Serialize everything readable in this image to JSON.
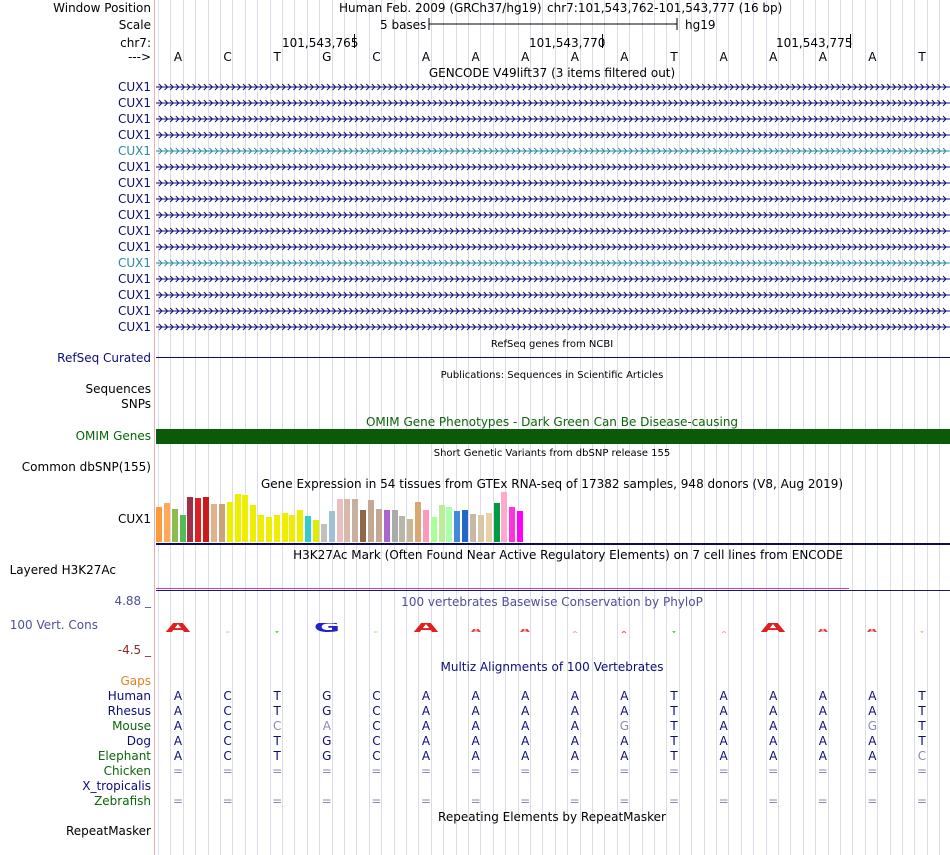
{
  "labels": {
    "window_position": "Window Position",
    "scale": "Scale",
    "chrom": "chr7:",
    "arrow": "--->",
    "refseq": "RefSeq Curated",
    "sequences": "Sequences",
    "snps": "SNPs",
    "omim": "OMIM Genes",
    "common_dbsnp": "Common dbSNP(155)",
    "gtex_gene": "CUX1",
    "h3k27ac": "Layered H3K27Ac",
    "cons_max": "4.88 _",
    "cons_label": "100 Vert. Cons",
    "cons_min": "-4.5 _",
    "gaps": "Gaps",
    "repeatmasker": "RepeatMasker"
  },
  "header": {
    "assembly": "Human Feb. 2009 (GRCh37/hg19)",
    "position": "chr7:101,543,762-101,543,777 (16 bp)",
    "scale_text": "5 bases",
    "scale_db": "hg19",
    "coord1": "101,543,765",
    "coord2": "101,543,770",
    "coord3": "101,543,775"
  },
  "bases": [
    "A",
    "C",
    "T",
    "G",
    "C",
    "A",
    "A",
    "A",
    "A",
    "A",
    "T",
    "A",
    "A",
    "A",
    "A",
    "T"
  ],
  "gencode": {
    "title": "GENCODE V49lift37 (3 items filtered out)",
    "rows": [
      {
        "name": "CUX1",
        "color": "navy"
      },
      {
        "name": "CUX1",
        "color": "navy"
      },
      {
        "name": "CUX1",
        "color": "navy"
      },
      {
        "name": "CUX1",
        "color": "navy"
      },
      {
        "name": "CUX1",
        "color": "teal"
      },
      {
        "name": "CUX1",
        "color": "navy"
      },
      {
        "name": "CUX1",
        "color": "navy"
      },
      {
        "name": "CUX1",
        "color": "navy"
      },
      {
        "name": "CUX1",
        "color": "navy"
      },
      {
        "name": "CUX1",
        "color": "navy"
      },
      {
        "name": "CUX1",
        "color": "navy"
      },
      {
        "name": "CUX1",
        "color": "teal"
      },
      {
        "name": "CUX1",
        "color": "navy"
      },
      {
        "name": "CUX1",
        "color": "navy"
      },
      {
        "name": "CUX1",
        "color": "navy"
      },
      {
        "name": "CUX1",
        "color": "navy"
      }
    ]
  },
  "tracks": {
    "refseq_title": "RefSeq genes from NCBI",
    "publications_title": "Publications: Sequences in Scientific Articles",
    "omim_title": "OMIM Gene Phenotypes - Dark Green Can Be Disease-causing",
    "dbsnp_title": "Short Genetic Variants from dbSNP release 155",
    "gtex_title": "Gene Expression in 54 tissues from GTEx RNA-seq of 17382 samples, 948 donors (V8, Aug 2019)",
    "h3k27ac_title": "H3K27Ac Mark (Often Found Near Active Regulatory Elements) on 7 cell lines from ENCODE",
    "phylop_title": "100 vertebrates Basewise Conservation by PhyloP",
    "multiz_title": "Multiz Alignments of 100 Vertebrates",
    "repeat_title": "Repeating Elements by RepeatMasker"
  },
  "colors": {
    "navy": "#0c0c78",
    "teal": "#2a8aa8",
    "omim_bar": "#0a5a0a",
    "species_green": "#0c640c",
    "gaps_orange": "#e08020",
    "phylop_purple": "#4e4e9c"
  },
  "gtex_bars": [
    {
      "h": 35,
      "c": "#ff9a3c"
    },
    {
      "h": 39,
      "c": "#ffa85a"
    },
    {
      "h": 33,
      "c": "#8fbc4f"
    },
    {
      "h": 27,
      "c": "#55bb55"
    },
    {
      "h": 45,
      "c": "#a0304a"
    },
    {
      "h": 44,
      "c": "#e02020"
    },
    {
      "h": 45,
      "c": "#cc1a1a"
    },
    {
      "h": 38,
      "c": "#dfb28c"
    },
    {
      "h": 38,
      "c": "#c9a27a"
    },
    {
      "h": 40,
      "c": "#eeee00"
    },
    {
      "h": 48,
      "c": "#eeee00"
    },
    {
      "h": 47,
      "c": "#eeee00"
    },
    {
      "h": 37,
      "c": "#eeee00"
    },
    {
      "h": 27,
      "c": "#eeee00"
    },
    {
      "h": 25,
      "c": "#eeee00"
    },
    {
      "h": 27,
      "c": "#eeee00"
    },
    {
      "h": 29,
      "c": "#eeee00"
    },
    {
      "h": 27,
      "c": "#eeee00"
    },
    {
      "h": 32,
      "c": "#eeee00"
    },
    {
      "h": 26,
      "c": "#33cccc"
    },
    {
      "h": 22,
      "c": "#ddee00"
    },
    {
      "h": 18,
      "c": "#c0c0c0"
    },
    {
      "h": 31,
      "c": "#a0c0d8"
    },
    {
      "h": 43,
      "c": "#e8c0c0"
    },
    {
      "h": 43,
      "c": "#d8b8a8"
    },
    {
      "h": 43,
      "c": "#c8b0a0"
    },
    {
      "h": 32,
      "c": "#8a6a4a"
    },
    {
      "h": 42,
      "c": "#c4a892"
    },
    {
      "h": 33,
      "c": "#c4a892"
    },
    {
      "h": 32,
      "c": "#aa66cc"
    },
    {
      "h": 32,
      "c": "#aaaaaa"
    },
    {
      "h": 26,
      "c": "#b8b8a8"
    },
    {
      "h": 23,
      "c": "#c8b898"
    },
    {
      "h": 40,
      "c": "#d8a870"
    },
    {
      "h": 32,
      "c": "#ff99bb"
    },
    {
      "h": 25,
      "c": "#aaff99"
    },
    {
      "h": 37,
      "c": "#bbee99"
    },
    {
      "h": 35,
      "c": "#aaffaa"
    },
    {
      "h": 31,
      "c": "#4488dd"
    },
    {
      "h": 32,
      "c": "#2266cc"
    },
    {
      "h": 28,
      "c": "#c8b8a8"
    },
    {
      "h": 27,
      "c": "#d8c8a8"
    },
    {
      "h": 29,
      "c": "#e8d0a8"
    },
    {
      "h": 39,
      "c": "#009944"
    },
    {
      "h": 50,
      "c": "#ffaacc"
    },
    {
      "h": 35,
      "c": "#ff33dd"
    },
    {
      "h": 31,
      "c": "#ff00ff"
    }
  ],
  "multiz": {
    "species": [
      {
        "name": "Human",
        "color": "navy",
        "bases": [
          "A",
          "C",
          "T",
          "G",
          "C",
          "A",
          "A",
          "A",
          "A",
          "A",
          "T",
          "A",
          "A",
          "A",
          "A",
          "T"
        ],
        "dim": []
      },
      {
        "name": "Rhesus",
        "color": "navy",
        "bases": [
          "A",
          "C",
          "T",
          "G",
          "C",
          "A",
          "A",
          "A",
          "A",
          "A",
          "T",
          "A",
          "A",
          "A",
          "A",
          "T"
        ],
        "dim": []
      },
      {
        "name": "Mouse",
        "color": "green",
        "bases": [
          "A",
          "C",
          "C",
          "A",
          "C",
          "A",
          "A",
          "A",
          "A",
          "G",
          "T",
          "A",
          "A",
          "A",
          "G",
          "T"
        ],
        "dim": [
          2,
          3,
          9,
          14
        ]
      },
      {
        "name": "Dog",
        "color": "navy",
        "bases": [
          "A",
          "C",
          "T",
          "G",
          "C",
          "A",
          "A",
          "A",
          "A",
          "A",
          "T",
          "A",
          "A",
          "A",
          "A",
          "T"
        ],
        "dim": []
      },
      {
        "name": "Elephant",
        "color": "green",
        "bases": [
          "A",
          "C",
          "T",
          "G",
          "C",
          "A",
          "A",
          "A",
          "A",
          "A",
          "T",
          "A",
          "A",
          "A",
          "A",
          "C"
        ],
        "dim": [
          15
        ]
      },
      {
        "name": "Chicken",
        "color": "green",
        "bases": [
          "=",
          "=",
          "=",
          "=",
          "=",
          "=",
          "=",
          "=",
          "=",
          "=",
          "=",
          "=",
          "=",
          "=",
          "=",
          "="
        ],
        "dim": [
          0,
          1,
          2,
          3,
          4,
          5,
          6,
          7,
          8,
          9,
          10,
          11,
          12,
          13,
          14,
          15
        ]
      },
      {
        "name": "X_tropicalis",
        "color": "navy",
        "bases": [
          "",
          "",
          "",
          "",
          "",
          "",
          "",
          "",
          "",
          "",
          "",
          "",
          "",
          "",
          "",
          ""
        ],
        "dim": []
      },
      {
        "name": "Zebrafish",
        "color": "green",
        "bases": [
          "=",
          "=",
          "=",
          "=",
          "=",
          "=",
          "=",
          "=",
          "=",
          "=",
          "=",
          "=",
          "=",
          "=",
          "=",
          "="
        ],
        "dim": [
          0,
          1,
          2,
          3,
          4,
          5,
          6,
          7,
          8,
          9,
          10,
          11,
          12,
          13,
          14,
          15
        ]
      }
    ]
  },
  "phylop_logo": [
    {
      "letter": "A",
      "color": "#e02020",
      "h": 0.8
    },
    {
      "letter": "C",
      "color": "#aaddaa",
      "h": 0.15
    },
    {
      "letter": "T",
      "color": "#22cc22",
      "h": 0.15
    },
    {
      "letter": "G",
      "color": "#2222cc",
      "h": 0.8
    },
    {
      "letter": "C",
      "color": "#aaddaa",
      "h": 0.15
    },
    {
      "letter": "A",
      "color": "#e02020",
      "h": 0.8
    },
    {
      "letter": "A",
      "color": "#e04040",
      "h": 0.3
    },
    {
      "letter": "A",
      "color": "#e04040",
      "h": 0.3
    },
    {
      "letter": "A",
      "color": "#f0a0a0",
      "h": 0.05
    },
    {
      "letter": "A",
      "color": "#e04040",
      "h": 0.2
    },
    {
      "letter": "T",
      "color": "#22cc22",
      "h": 0.2
    },
    {
      "letter": "A",
      "color": "#f0a0a0",
      "h": 0.05
    },
    {
      "letter": "A",
      "color": "#e02020",
      "h": 0.8
    },
    {
      "letter": "A",
      "color": "#e04040",
      "h": 0.3
    },
    {
      "letter": "A",
      "color": "#e04040",
      "h": 0.3
    },
    {
      "letter": "T",
      "color": "#f0a0a0",
      "h": 0.05
    }
  ]
}
